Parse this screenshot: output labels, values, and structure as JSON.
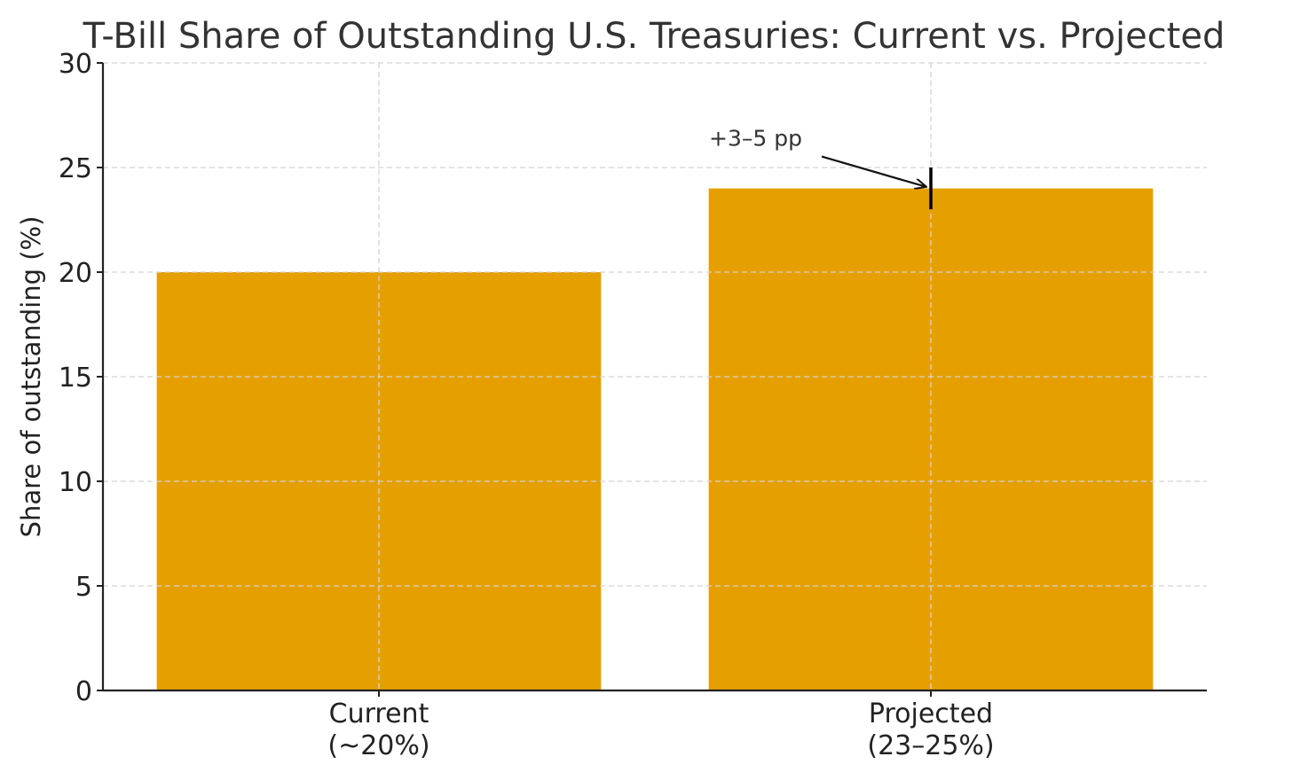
{
  "chart_data": {
    "type": "bar",
    "title": "T-Bill Share of Outstanding U.S. Treasuries: Current vs. Projected",
    "ylabel": "Share of outstanding (%)",
    "xlabel": "",
    "ylim": [
      0,
      30
    ],
    "yticks": [
      0,
      5,
      10,
      15,
      20,
      25,
      30
    ],
    "grid": true,
    "bar_color": "#E5A000",
    "categories": [
      {
        "line1": "Current",
        "line2": "(~20%)"
      },
      {
        "line1": "Projected",
        "line2": "(23–25%)"
      }
    ],
    "values": [
      20,
      24
    ],
    "error_bars": [
      null,
      {
        "low": 23,
        "high": 25
      }
    ],
    "annotation": {
      "text": "+3–5 pp",
      "target_category_index": 1,
      "target_value": 24
    }
  }
}
